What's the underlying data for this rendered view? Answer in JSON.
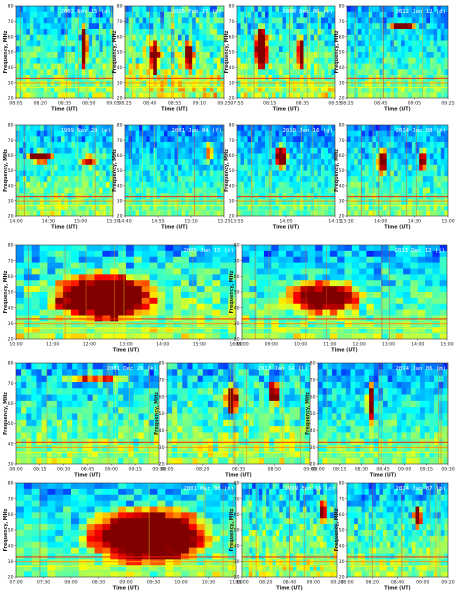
{
  "axis_text": {
    "y_label": "Frequency, MHz",
    "x_label": "Time (UT)"
  },
  "chart_data": [
    {
      "type": "heatmap",
      "title": "2002 Nov 15 (a)",
      "ylim": [
        20,
        80
      ],
      "yticks": [
        20,
        30,
        40,
        50,
        60,
        70,
        80
      ],
      "xticks": [
        "08:05",
        "08:20",
        "08:35",
        "08:50",
        "09:05"
      ],
      "xlabel": "Time (UT)",
      "ylabel": "Frequency, MHz",
      "features": [
        {
          "kind": "bright",
          "x": 0.7,
          "y": 0.45,
          "w": 0.08,
          "h": 0.55,
          "c": 1.0
        }
      ],
      "noise": 0.15
    },
    {
      "type": "heatmap",
      "title": "2005 Feb 17 (b)",
      "ylim": [
        20,
        80
      ],
      "yticks": [
        20,
        30,
        40,
        50,
        60,
        70,
        80
      ],
      "xticks": [
        "08:25",
        "08:40",
        "08:55",
        "09:10",
        "09:25"
      ],
      "xlabel": "Time (UT)",
      "ylabel": "Frequency, MHz",
      "features": [
        {
          "kind": "bright",
          "x": 0.3,
          "y": 0.55,
          "w": 0.1,
          "h": 0.45,
          "c": 0.85
        },
        {
          "kind": "bright",
          "x": 0.65,
          "y": 0.55,
          "w": 0.1,
          "h": 0.4,
          "c": 0.8
        }
      ],
      "noise": 0.25
    },
    {
      "type": "heatmap",
      "title": "2006 Dec 06 (c)",
      "ylim": [
        20,
        80
      ],
      "yticks": [
        20,
        30,
        40,
        50,
        60,
        70,
        80
      ],
      "xticks": [
        "07:55",
        "08:15",
        "08:35",
        "08:55"
      ],
      "xlabel": "Time (UT)",
      "ylabel": "Frequency, MHz",
      "features": [
        {
          "kind": "bright",
          "x": 0.25,
          "y": 0.45,
          "w": 0.15,
          "h": 0.55,
          "c": 0.95
        },
        {
          "kind": "bright",
          "x": 0.65,
          "y": 0.5,
          "w": 0.08,
          "h": 0.45,
          "c": 0.8
        }
      ],
      "noise": 0.2
    },
    {
      "type": "heatmap",
      "title": "2012 Jan 12 (d)",
      "ylim": [
        20,
        80
      ],
      "yticks": [
        20,
        30,
        40,
        50,
        60,
        70,
        80
      ],
      "xticks": [
        "08:25",
        "08:45",
        "09:05",
        "09:25"
      ],
      "xlabel": "Time (UT)",
      "ylabel": "Frequency, MHz",
      "features": [
        {
          "kind": "bright",
          "x": 0.55,
          "y": 0.22,
          "w": 0.3,
          "h": 0.12,
          "c": 0.95
        }
      ],
      "noise": 0.1
    },
    {
      "type": "heatmap",
      "title": "1999 Nov 29 (e)",
      "ylim": [
        20,
        80
      ],
      "yticks": [
        20,
        30,
        40,
        50,
        60,
        70,
        80
      ],
      "xticks": [
        "14:00",
        "14:30",
        "15:00",
        "15:30"
      ],
      "xlabel": "Time (UT)",
      "ylabel": "Frequency, MHz",
      "features": [
        {
          "kind": "bright",
          "x": 0.25,
          "y": 0.35,
          "w": 0.3,
          "h": 0.15,
          "c": 0.9
        },
        {
          "kind": "bright",
          "x": 0.75,
          "y": 0.4,
          "w": 0.2,
          "h": 0.15,
          "c": 0.6
        }
      ],
      "noise": 0.15
    },
    {
      "type": "heatmap",
      "title": "2001 Jan 04 (f)",
      "ylim": [
        20,
        80
      ],
      "yticks": [
        20,
        30,
        40,
        50,
        60,
        70,
        80
      ],
      "xticks": [
        "14:40",
        "14:55",
        "15:10",
        "15:25"
      ],
      "xlabel": "Time (UT)",
      "ylabel": "Frequency, MHz",
      "features": [
        {
          "kind": "bright",
          "x": 0.85,
          "y": 0.3,
          "w": 0.08,
          "h": 0.25,
          "c": 0.6
        }
      ],
      "noise": 0.05
    },
    {
      "type": "heatmap",
      "title": "2010 Jan 16 (g)",
      "ylim": [
        20,
        80
      ],
      "yticks": [
        20,
        30,
        40,
        50,
        60,
        70,
        80
      ],
      "xticks": [
        "13:55",
        "14:05",
        "14:15"
      ],
      "xlabel": "Time (UT)",
      "ylabel": "Frequency, MHz",
      "features": [
        {
          "kind": "bright",
          "x": 0.45,
          "y": 0.35,
          "w": 0.15,
          "h": 0.3,
          "c": 1.0
        }
      ],
      "noise": 0.05
    },
    {
      "type": "heatmap",
      "title": "2014 Jan 08 (h)",
      "ylim": [
        20,
        80
      ],
      "yticks": [
        20,
        30,
        40,
        50,
        60,
        70,
        80
      ],
      "xticks": [
        "13:30",
        "14:00",
        "14:30",
        "15:00"
      ],
      "xlabel": "Time (UT)",
      "ylabel": "Frequency, MHz",
      "features": [
        {
          "kind": "bright",
          "x": 0.35,
          "y": 0.4,
          "w": 0.12,
          "h": 0.35,
          "c": 0.8
        },
        {
          "kind": "bright",
          "x": 0.75,
          "y": 0.4,
          "w": 0.1,
          "h": 0.3,
          "c": 0.7
        }
      ],
      "noise": 0.1
    },
    {
      "type": "heatmap",
      "title": "2005 Jan 15 (i)",
      "ylim": [
        20,
        80
      ],
      "yticks": [
        20,
        30,
        40,
        50,
        60,
        70,
        80
      ],
      "xticks": [
        "10:00",
        "11:00",
        "12:00",
        "13:00",
        "14:00",
        "15:00",
        "16:00"
      ],
      "xlabel": "Time (UT)",
      "ylabel": "Frequency, MHz",
      "features": [
        {
          "kind": "bright",
          "x": 0.4,
          "y": 0.55,
          "w": 0.55,
          "h": 0.6,
          "c": 0.9
        }
      ],
      "noise": 0.2
    },
    {
      "type": "heatmap",
      "title": "2013 Dec 12 (j)",
      "ylim": [
        20,
        80
      ],
      "yticks": [
        20,
        30,
        40,
        50,
        60,
        70,
        80
      ],
      "xticks": [
        "08:00",
        "09:00",
        "10:00",
        "11:00",
        "12:00",
        "13:00",
        "14:00",
        "15:00"
      ],
      "xlabel": "Time (UT)",
      "ylabel": "Frequency, MHz",
      "features": [
        {
          "kind": "bright",
          "x": 0.4,
          "y": 0.55,
          "w": 0.45,
          "h": 0.4,
          "c": 0.75
        }
      ],
      "noise": 0.15
    },
    {
      "type": "heatmap",
      "title": "2001 Dec 26 (k)",
      "ylim": [
        30,
        80
      ],
      "yticks": [
        30,
        40,
        50,
        60,
        70,
        80
      ],
      "xticks": [
        "08:00",
        "08:15",
        "08:30",
        "08:45",
        "09:00",
        "09:15",
        "09:30"
      ],
      "xlabel": "Time (UT)",
      "ylabel": "Frequency, MHz",
      "features": [
        {
          "kind": "bright",
          "x": 0.55,
          "y": 0.15,
          "w": 0.5,
          "h": 0.12,
          "c": 0.5
        }
      ],
      "noise": 0.15
    },
    {
      "type": "heatmap",
      "title": "2013 Jan 14 (l)",
      "ylim": [
        20,
        80
      ],
      "yticks": [
        20,
        30,
        40,
        50,
        60,
        70,
        80
      ],
      "xticks": [
        "08:05",
        "08:20",
        "08:35",
        "08:50",
        "09:05"
      ],
      "xlabel": "Time (UT)",
      "ylabel": "Frequency, MHz",
      "features": [
        {
          "kind": "bright",
          "x": 0.45,
          "y": 0.35,
          "w": 0.1,
          "h": 0.35,
          "c": 0.85
        },
        {
          "kind": "bright",
          "x": 0.75,
          "y": 0.3,
          "w": 0.08,
          "h": 0.3,
          "c": 0.8
        }
      ],
      "noise": 0.2
    },
    {
      "type": "heatmap",
      "title": "2014 Jan 06 (m)",
      "ylim": [
        20,
        80
      ],
      "yticks": [
        20,
        30,
        40,
        50,
        60,
        70,
        80
      ],
      "xticks": [
        "08:00",
        "08:15",
        "08:30",
        "08:45",
        "09:00",
        "09:15",
        "09:30"
      ],
      "xlabel": "Time (UT)",
      "ylabel": "Frequency, MHz",
      "features": [
        {
          "kind": "bright",
          "x": 0.4,
          "y": 0.4,
          "w": 0.06,
          "h": 0.5,
          "c": 0.9
        }
      ],
      "noise": 0.1
    },
    {
      "type": "heatmap",
      "title": "2001 Mar 30 (n)",
      "ylim": [
        20,
        80
      ],
      "yticks": [
        20,
        30,
        40,
        50,
        60,
        70,
        80
      ],
      "xticks": [
        "07:00",
        "07:30",
        "08:00",
        "08:30",
        "09:00",
        "09:30",
        "10:00",
        "10:30",
        "11:00"
      ],
      "xlabel": "Time (UT)",
      "ylabel": "Frequency, MHz",
      "features": [
        {
          "kind": "bright",
          "x": 0.6,
          "y": 0.55,
          "w": 0.65,
          "h": 0.7,
          "c": 0.95
        }
      ],
      "noise": 0.15
    },
    {
      "type": "heatmap",
      "title": "1999 Feb 16 (o)",
      "ylim": [
        20,
        80
      ],
      "yticks": [
        20,
        30,
        40,
        50,
        60,
        70,
        80
      ],
      "xticks": [
        "08:00",
        "08:20",
        "08:40",
        "09:00",
        "09:20"
      ],
      "xlabel": "Time (UT)",
      "ylabel": "Frequency, MHz",
      "features": [
        {
          "kind": "bright",
          "x": 0.85,
          "y": 0.3,
          "w": 0.1,
          "h": 0.3,
          "c": 0.7
        }
      ],
      "noise": 0.2
    },
    {
      "type": "heatmap",
      "title": "2014 Jan 07 (p)",
      "ylim": [
        20,
        80
      ],
      "yticks": [
        20,
        30,
        40,
        50,
        60,
        70,
        80
      ],
      "xticks": [
        "08:00",
        "08:20",
        "08:40",
        "09:00",
        "09:20"
      ],
      "xlabel": "Time (UT)",
      "ylabel": "Frequency, MHz",
      "features": [
        {
          "kind": "bright",
          "x": 0.7,
          "y": 0.35,
          "w": 0.1,
          "h": 0.3,
          "c": 0.8
        }
      ],
      "noise": 0.15
    }
  ]
}
